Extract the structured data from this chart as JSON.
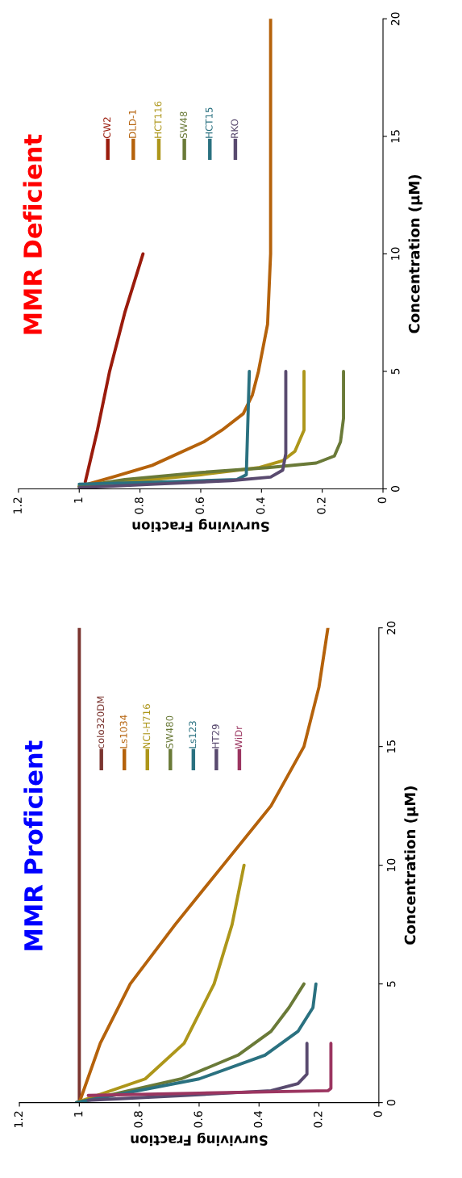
{
  "chart_data": [
    {
      "type": "line",
      "title": "MMR Proficient",
      "xlabel": "Surviving Fraction",
      "ylabel": "Concentration (µM)",
      "xlim": [
        1.2,
        0
      ],
      "xticks": [
        1.2,
        1,
        0.8,
        0.6,
        0.4,
        0.2,
        0
      ],
      "ylim": [
        0,
        20
      ],
      "yticks": [
        0,
        5,
        10,
        15,
        20
      ],
      "grid": false,
      "legend": "top left",
      "marker": "none",
      "line_style": "solid",
      "series": [
        {
          "name": "colo320DM",
          "color": "#7b3530",
          "values": [
            0,
            20
          ],
          "x": [
            1.0,
            1.0
          ]
        },
        {
          "name": "Ls1034",
          "color": "#b5620b",
          "values": [
            0,
            2.5,
            5,
            7.5,
            10,
            12.5,
            15,
            17.5,
            20
          ],
          "x": [
            1.0,
            0.93,
            0.83,
            0.68,
            0.52,
            0.36,
            0.25,
            0.2,
            0.17
          ]
        },
        {
          "name": "NCI-H716",
          "color": "#ad961a",
          "values": [
            0,
            1,
            2.5,
            5,
            7.5,
            10
          ],
          "x": [
            1.01,
            0.78,
            0.65,
            0.55,
            0.49,
            0.45
          ]
        },
        {
          "name": "SW480",
          "color": "#6a7a38",
          "values": [
            0,
            1,
            2,
            3,
            4,
            5
          ],
          "x": [
            1.01,
            0.66,
            0.47,
            0.36,
            0.3,
            0.25
          ]
        },
        {
          "name": "Ls123",
          "color": "#2a7180",
          "values": [
            0,
            1,
            2,
            3,
            4,
            5
          ],
          "x": [
            1.01,
            0.6,
            0.38,
            0.27,
            0.22,
            0.21
          ]
        },
        {
          "name": "HT29",
          "color": "#594a6f",
          "values": [
            0.1,
            0.3,
            0.5,
            0.8,
            1.2,
            2.5
          ],
          "x": [
            0.97,
            0.65,
            0.36,
            0.27,
            0.24,
            0.24
          ]
        },
        {
          "name": "WiDr",
          "color": "#9b3560",
          "values": [
            0.3,
            0.4,
            0.5,
            0.6,
            2.5
          ],
          "x": [
            0.97,
            0.6,
            0.17,
            0.16,
            0.16
          ]
        }
      ]
    },
    {
      "type": "line",
      "title": "MMR Deficient",
      "xlabel": "Surviving Fraction",
      "ylabel": "Concentration (µM)",
      "xlim": [
        1.2,
        0
      ],
      "xticks": [
        1.2,
        1,
        0.8,
        0.6,
        0.4,
        0.2,
        0
      ],
      "ylim": [
        0,
        20
      ],
      "yticks": [
        0,
        5,
        10,
        15,
        20
      ],
      "grid": false,
      "legend": "top left",
      "marker": "none",
      "line_style": "solid",
      "series": [
        {
          "name": "CW2",
          "color": "#9a1b0c",
          "values": [
            0.3,
            2.5,
            5,
            7.5,
            10
          ],
          "x": [
            0.98,
            0.94,
            0.9,
            0.85,
            0.79
          ]
        },
        {
          "name": "DLD-1",
          "color": "#b5620b",
          "values": [
            0.1,
            0.5,
            1,
            2,
            2.5,
            3.2,
            4,
            5,
            7,
            10,
            20
          ],
          "x": [
            1.0,
            0.89,
            0.76,
            0.59,
            0.53,
            0.46,
            0.43,
            0.41,
            0.38,
            0.37,
            0.37
          ]
        },
        {
          "name": "HCT116",
          "color": "#ad961a",
          "values": [
            0.1,
            0.3,
            0.6,
            0.9,
            1.2,
            1.6,
            2.5,
            5
          ],
          "x": [
            1.0,
            0.84,
            0.6,
            0.41,
            0.33,
            0.29,
            0.26,
            0.26
          ]
        },
        {
          "name": "SW48",
          "color": "#6a7a38",
          "values": [
            0.1,
            0.4,
            0.7,
            0.9,
            1.1,
            1.4,
            2,
            3,
            5
          ],
          "x": [
            1.0,
            0.85,
            0.6,
            0.38,
            0.22,
            0.16,
            0.14,
            0.13,
            0.13
          ]
        },
        {
          "name": "HCT15",
          "color": "#2a7180",
          "values": [
            0.2,
            0.3,
            0.4,
            0.6,
            5
          ],
          "x": [
            1.0,
            0.7,
            0.48,
            0.45,
            0.44
          ]
        },
        {
          "name": "RKO",
          "color": "#594a6f",
          "values": [
            0.05,
            0.2,
            0.35,
            0.5,
            0.8,
            1.5,
            5
          ],
          "x": [
            1.0,
            0.75,
            0.5,
            0.37,
            0.33,
            0.32,
            0.32
          ]
        }
      ]
    }
  ]
}
